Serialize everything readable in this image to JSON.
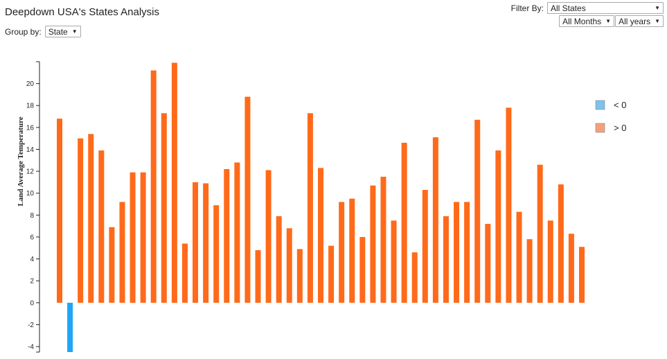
{
  "header": {
    "title": "Deepdown USA's States Analysis"
  },
  "controls": {
    "group_by_label": "Group by:",
    "group_by_value": "State",
    "filter_by_label": "Filter By:",
    "state_value": "All States",
    "months_value": "All Months",
    "years_value": "All years"
  },
  "colors": {
    "negative": "#1ea7f4",
    "positive": "#ff6a1a",
    "legend_negative": "#7cc3ee",
    "legend_positive": "#f6a07a"
  },
  "chart_data": {
    "type": "bar",
    "ylabel": "Land Average Temperature",
    "xlabel": "",
    "ylim": [
      -4.5,
      22
    ],
    "yticks": [
      -4,
      -2,
      0,
      2,
      4,
      6,
      8,
      10,
      12,
      14,
      16,
      18,
      20
    ],
    "legend": {
      "position": "right",
      "entries": [
        "< 0",
        "> 0"
      ]
    },
    "values": [
      16.8,
      -4.5,
      15.0,
      15.4,
      13.9,
      6.9,
      9.2,
      11.9,
      11.9,
      21.2,
      17.3,
      21.9,
      5.4,
      11.0,
      10.9,
      8.9,
      12.2,
      12.8,
      18.8,
      4.8,
      12.1,
      7.9,
      6.8,
      4.9,
      17.3,
      12.3,
      5.2,
      9.2,
      9.5,
      6.0,
      10.7,
      11.5,
      7.5,
      14.6,
      4.6,
      10.3,
      15.1,
      7.9,
      9.2,
      9.2,
      16.7,
      7.2,
      13.9,
      17.8,
      8.3,
      5.8,
      12.6,
      7.5,
      10.8,
      6.3,
      5.1
    ]
  }
}
